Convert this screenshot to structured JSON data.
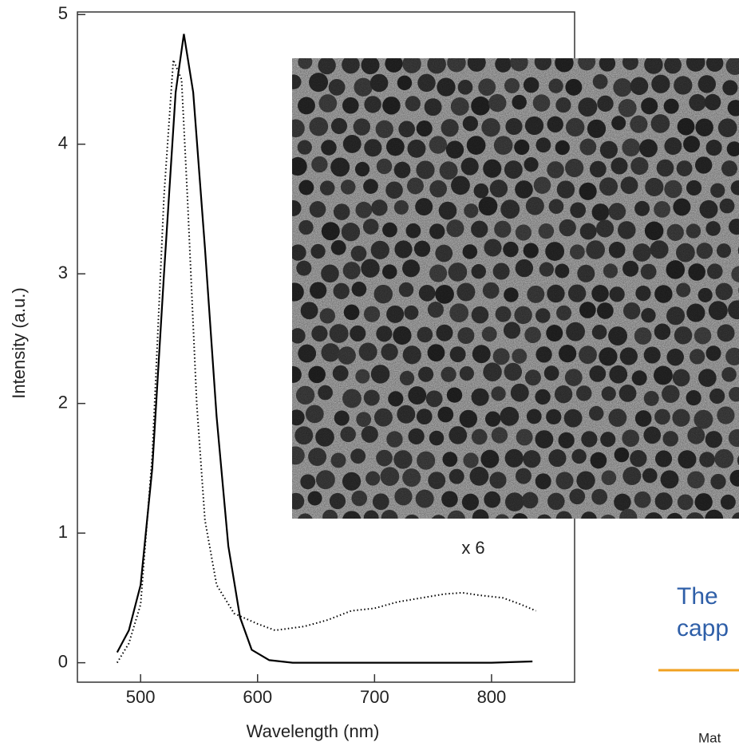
{
  "chart_data": {
    "type": "line",
    "xlabel": "Wavelength (nm)",
    "ylabel": "Intensity (a.u.)",
    "xlim": [
      446,
      871
    ],
    "ylim": [
      -0.15,
      5.02
    ],
    "xticks": [
      500,
      600,
      700,
      800
    ],
    "yticks": [
      0,
      1,
      2,
      3,
      4,
      5
    ],
    "annotation": "x 6",
    "series": [
      {
        "style": "solid",
        "color": "#000000",
        "x": [
          480,
          490,
          500,
          510,
          520,
          530,
          537,
          545,
          555,
          565,
          575,
          585,
          595,
          610,
          630,
          700,
          800,
          835
        ],
        "values": [
          0.08,
          0.25,
          0.6,
          1.5,
          3.0,
          4.4,
          4.85,
          4.4,
          3.2,
          1.9,
          0.9,
          0.35,
          0.1,
          0.02,
          0.0,
          0.0,
          0.0,
          0.01
        ]
      },
      {
        "style": "dotted",
        "color": "#000000",
        "x": [
          480,
          490,
          500,
          510,
          520,
          528,
          535,
          540,
          548,
          555,
          565,
          580,
          600,
          615,
          640,
          660,
          680,
          700,
          720,
          740,
          760,
          775,
          790,
          810,
          825,
          838
        ],
        "values": [
          0.0,
          0.15,
          0.45,
          1.6,
          3.6,
          4.65,
          4.5,
          3.6,
          2.0,
          1.1,
          0.6,
          0.38,
          0.3,
          0.25,
          0.28,
          0.33,
          0.4,
          0.42,
          0.47,
          0.5,
          0.53,
          0.54,
          0.52,
          0.5,
          0.45,
          0.4
        ]
      }
    ]
  },
  "slide": {
    "text_lines": [
      "The",
      "capp"
    ],
    "footer": "Mat"
  }
}
